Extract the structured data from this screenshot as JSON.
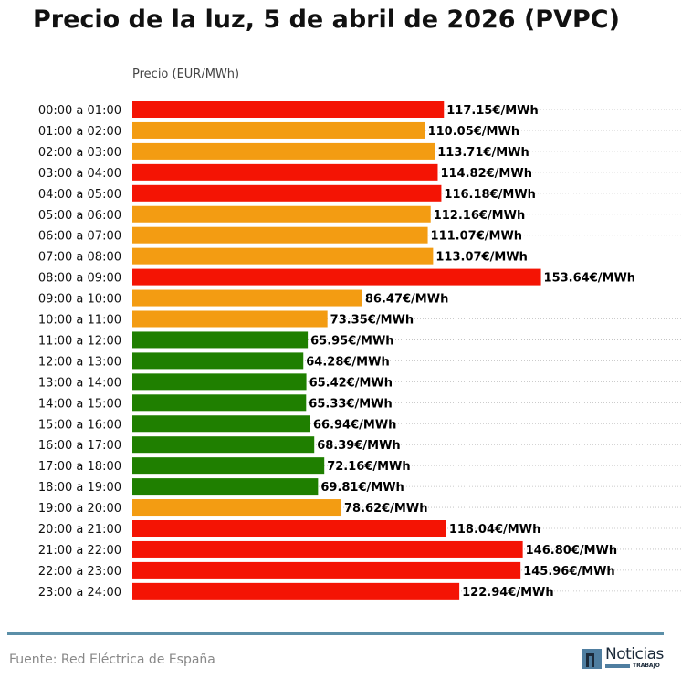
{
  "chart_data": {
    "type": "bar",
    "orientation": "horizontal",
    "title": "Precio de la luz, 5 de abril de 2026 (PVPC)",
    "xlabel": "Precio (EUR/MWh)",
    "ylabel": "",
    "value_suffix": "€/MWh",
    "grid": "dotted horizontal",
    "xlim": [
      0,
      207
    ],
    "categories": [
      "00:00 a 01:00",
      "01:00 a 02:00",
      "02:00 a 03:00",
      "03:00 a 04:00",
      "04:00 a 05:00",
      "05:00 a 06:00",
      "06:00 a 07:00",
      "07:00 a 08:00",
      "08:00 a 09:00",
      "09:00 a 10:00",
      "10:00 a 11:00",
      "11:00 a 12:00",
      "12:00 a 13:00",
      "13:00 a 14:00",
      "14:00 a 15:00",
      "15:00 a 16:00",
      "16:00 a 17:00",
      "17:00 a 18:00",
      "18:00 a 19:00",
      "19:00 a 20:00",
      "20:00 a 21:00",
      "21:00 a 22:00",
      "22:00 a 23:00",
      "23:00 a 24:00"
    ],
    "values": [
      117.15,
      110.05,
      113.71,
      114.82,
      116.18,
      112.16,
      111.07,
      113.07,
      153.64,
      86.47,
      73.35,
      65.95,
      64.28,
      65.42,
      65.33,
      66.94,
      68.39,
      72.16,
      69.81,
      78.62,
      118.04,
      146.8,
      145.96,
      122.94
    ],
    "data_labels": [
      "117.15€/MWh",
      "110.05€/MWh",
      "113.71€/MWh",
      "114.82€/MWh",
      "116.18€/MWh",
      "112.16€/MWh",
      "111.07€/MWh",
      "113.07€/MWh",
      "153.64€/MWh",
      "86.47€/MWh",
      "73.35€/MWh",
      "65.95€/MWh",
      "64.28€/MWh",
      "65.42€/MWh",
      "65.33€/MWh",
      "66.94€/MWh",
      "68.39€/MWh",
      "72.16€/MWh",
      "69.81€/MWh",
      "78.62€/MWh",
      "118.04€/MWh",
      "146.80€/MWh",
      "145.96€/MWh",
      "122.94€/MWh"
    ],
    "bar_levels": [
      "high",
      "mid",
      "mid",
      "high",
      "high",
      "mid",
      "mid",
      "mid",
      "high",
      "mid",
      "mid",
      "low",
      "low",
      "low",
      "low",
      "low",
      "low",
      "low",
      "low",
      "mid",
      "high",
      "high",
      "high",
      "high"
    ],
    "level_colors": {
      "high": "#f41404",
      "mid": "#f39c12",
      "low": "#1f7f00"
    }
  },
  "footer": {
    "source": "Fuente: Red Eléctrica de España",
    "logo_text": "Noticias",
    "logo_subtext": "TRABAJO",
    "rule_color": "#5b8fa8"
  }
}
